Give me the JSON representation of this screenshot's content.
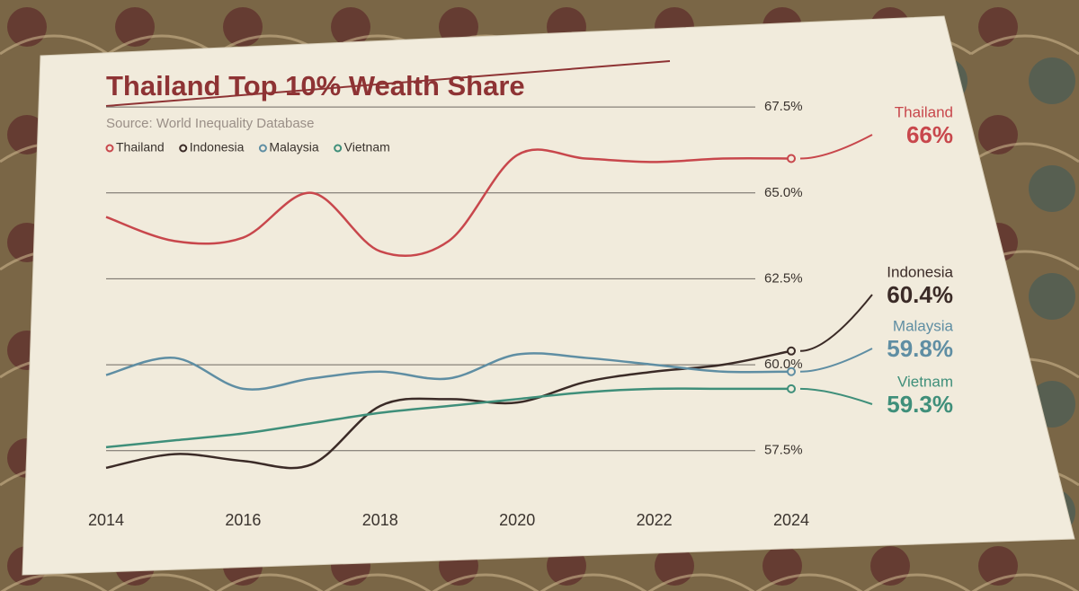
{
  "chart_data": {
    "type": "line",
    "title": "Thailand Top 10% Wealth Share",
    "subtitle": "Source: World Inequality Database",
    "x": [
      2014,
      2015,
      2016,
      2017,
      2018,
      2019,
      2020,
      2021,
      2022,
      2023,
      2024
    ],
    "xlim": [
      2014,
      2024
    ],
    "xticks": [
      2014,
      2016,
      2018,
      2020,
      2022,
      2024
    ],
    "ylim": [
      56.5,
      68
    ],
    "yticks": [
      {
        "value": 57.5,
        "label": "57.5%"
      },
      {
        "value": 60,
        "label": "60.0%"
      },
      {
        "value": 62.5,
        "label": "62.5%"
      },
      {
        "value": 65,
        "label": "65.0%"
      },
      {
        "value": 67.5,
        "label": "67.5%"
      }
    ],
    "grid": true,
    "legend": "top-left",
    "series": [
      {
        "name": "Thailand",
        "color": "#c8474c",
        "values": [
          64.3,
          63.6,
          63.7,
          65.0,
          63.3,
          63.6,
          66.1,
          66.0,
          65.9,
          66.0,
          66.0
        ],
        "end_label": "66%"
      },
      {
        "name": "Indonesia",
        "color": "#3b2b27",
        "values": [
          57.0,
          57.4,
          57.2,
          57.1,
          58.8,
          59.0,
          58.9,
          59.5,
          59.8,
          60.0,
          60.4
        ],
        "end_label": "60.4%"
      },
      {
        "name": "Malaysia",
        "color": "#5f8ea3",
        "values": [
          59.7,
          60.2,
          59.3,
          59.6,
          59.8,
          59.6,
          60.3,
          60.2,
          60.0,
          59.8,
          59.8
        ],
        "end_label": "59.8%"
      },
      {
        "name": "Vietnam",
        "color": "#3f8f7a",
        "values": [
          57.6,
          57.8,
          58.0,
          58.3,
          58.6,
          58.8,
          59.0,
          59.2,
          59.3,
          59.3,
          59.3
        ],
        "end_label": "59.3%"
      }
    ]
  }
}
